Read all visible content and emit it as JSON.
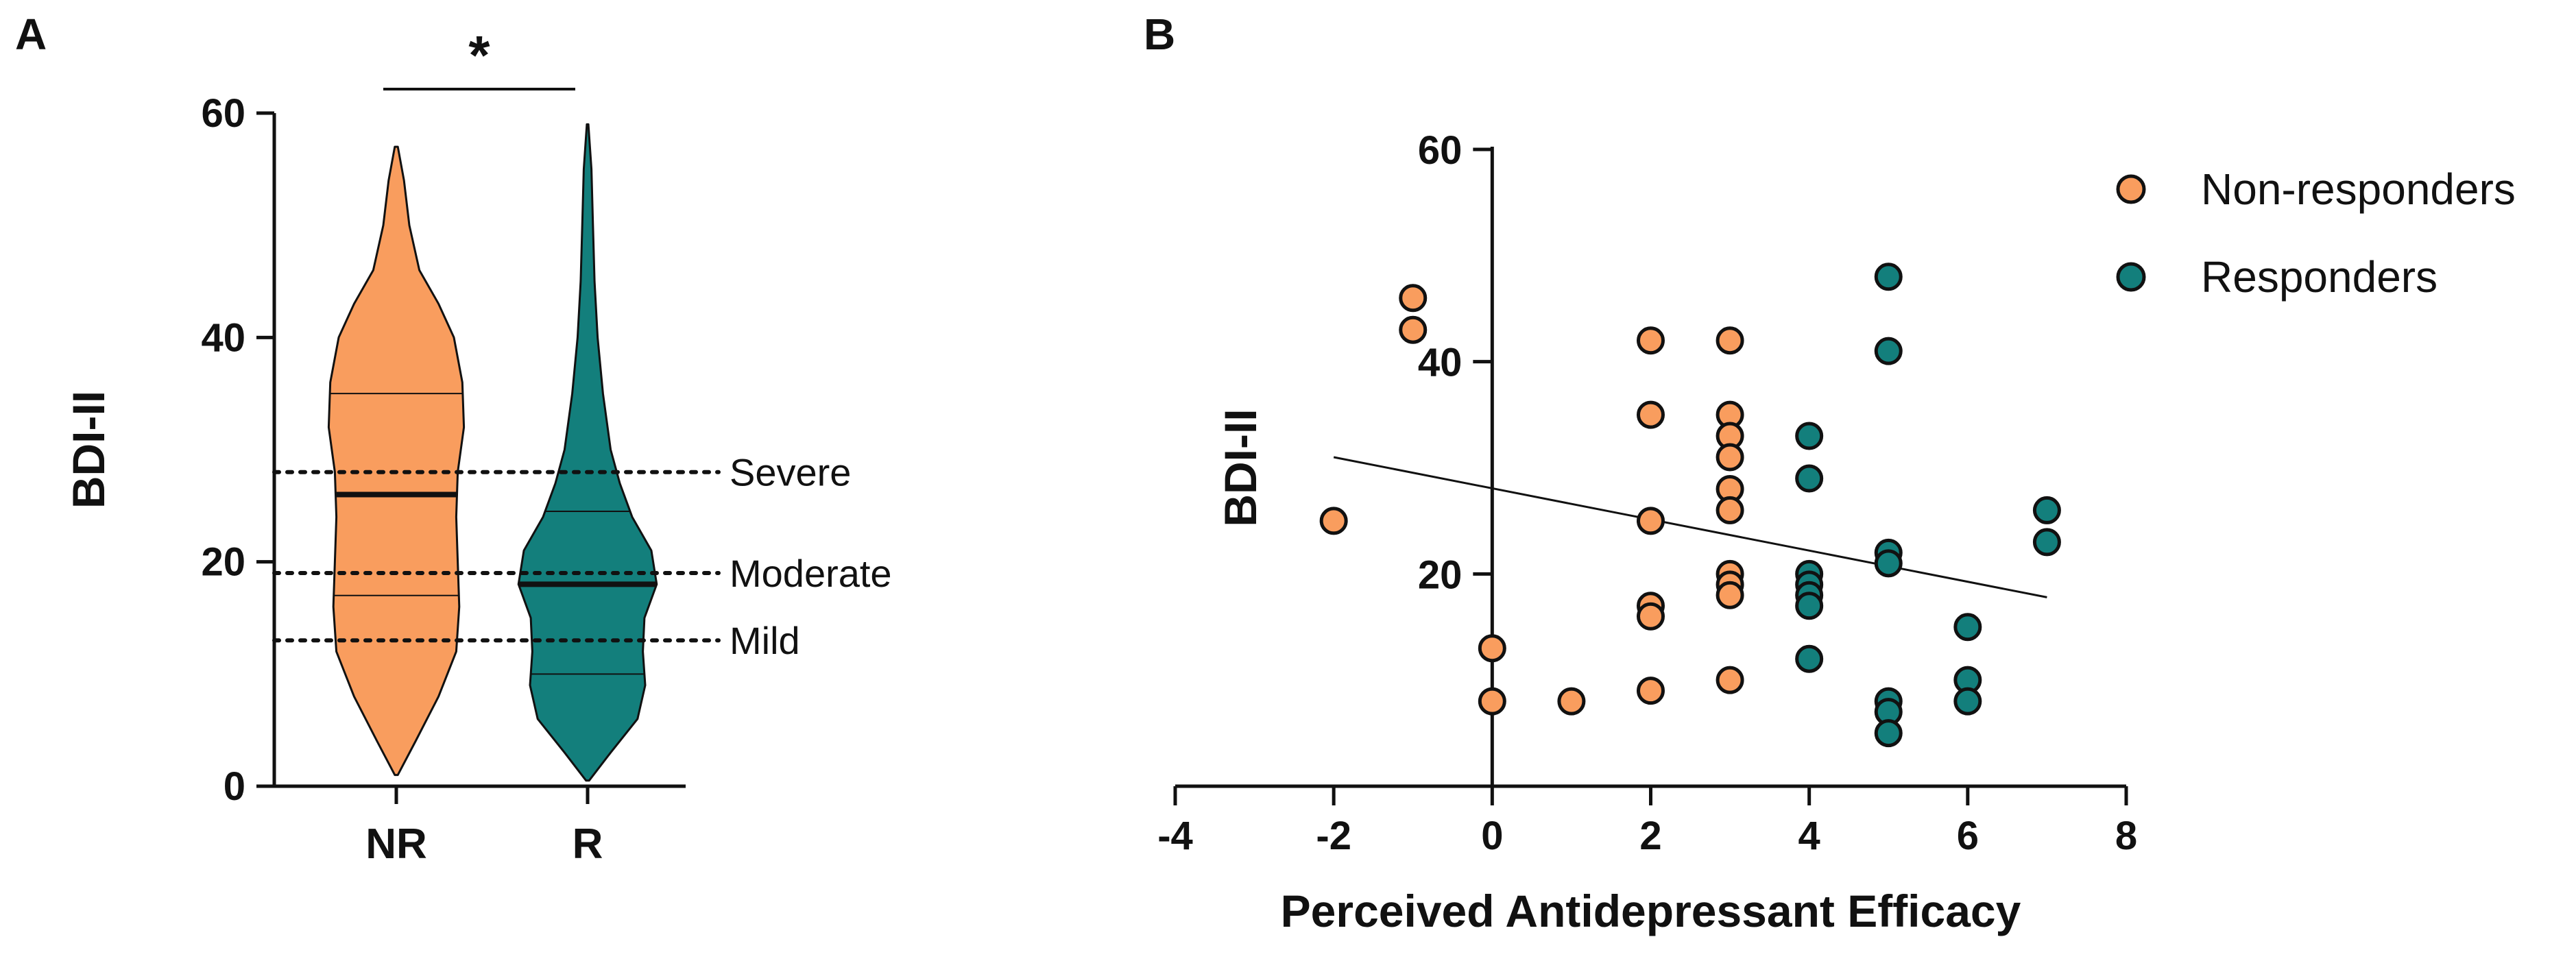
{
  "panels": {
    "a": "A",
    "b": "B"
  },
  "colors": {
    "nr": "#F99D5E",
    "r": "#137F7C",
    "ink": "#111111"
  },
  "chart_data": [
    {
      "type": "violin",
      "panel": "A",
      "ylabel": "BDI-II",
      "ylim": [
        0,
        60
      ],
      "yticks": [
        0,
        20,
        40,
        60
      ],
      "categories": [
        "NR",
        "R"
      ],
      "significance": "*",
      "groups": [
        {
          "name": "NR",
          "median": 26,
          "q1": 17,
          "q3": 35,
          "min": 1,
          "max": 57,
          "density_profile": [
            [
              1,
              0.02
            ],
            [
              4,
              0.25
            ],
            [
              8,
              0.55
            ],
            [
              12,
              0.78
            ],
            [
              16,
              0.82
            ],
            [
              20,
              0.8
            ],
            [
              24,
              0.78
            ],
            [
              28,
              0.8
            ],
            [
              32,
              0.88
            ],
            [
              36,
              0.86
            ],
            [
              40,
              0.75
            ],
            [
              43,
              0.55
            ],
            [
              46,
              0.3
            ],
            [
              50,
              0.17
            ],
            [
              54,
              0.1
            ],
            [
              57,
              0.02
            ]
          ]
        },
        {
          "name": "R",
          "median": 18,
          "q1": 10,
          "q3": 24.5,
          "min": 0.5,
          "max": 59,
          "density_profile": [
            [
              0.5,
              0.02
            ],
            [
              3,
              0.3
            ],
            [
              6,
              0.65
            ],
            [
              9,
              0.75
            ],
            [
              12,
              0.72
            ],
            [
              15,
              0.74
            ],
            [
              18,
              0.9
            ],
            [
              21,
              0.83
            ],
            [
              24,
              0.58
            ],
            [
              27,
              0.42
            ],
            [
              30,
              0.3
            ],
            [
              35,
              0.2
            ],
            [
              40,
              0.13
            ],
            [
              45,
              0.09
            ],
            [
              50,
              0.07
            ],
            [
              55,
              0.05
            ],
            [
              59,
              0.01
            ]
          ]
        }
      ],
      "cutoffs": [
        {
          "label": "Severe",
          "value": 28
        },
        {
          "label": "Moderate",
          "value": 19
        },
        {
          "label": "Mild",
          "value": 13
        }
      ]
    },
    {
      "type": "scatter",
      "panel": "B",
      "xlabel": "Perceived Antidepressant Efficacy",
      "ylabel": "BDI-II",
      "xlim": [
        -4,
        8
      ],
      "ylim": [
        0,
        60
      ],
      "xticks": [
        -4,
        -2,
        0,
        2,
        4,
        6,
        8
      ],
      "yticks": [
        20,
        40,
        60
      ],
      "trendline": {
        "x": [
          -2,
          7
        ],
        "y": [
          31,
          17.8
        ]
      },
      "series": [
        {
          "name": "Non-responders",
          "color": "#F99D5E",
          "points": [
            [
              -2,
              25
            ],
            [
              -1,
              46
            ],
            [
              -1,
              43
            ],
            [
              0,
              13
            ],
            [
              0,
              8
            ],
            [
              1,
              8
            ],
            [
              2,
              42
            ],
            [
              2,
              35
            ],
            [
              2,
              25
            ],
            [
              2,
              17
            ],
            [
              2,
              16
            ],
            [
              2,
              9
            ],
            [
              3,
              42
            ],
            [
              3,
              35
            ],
            [
              3,
              33
            ],
            [
              3,
              31
            ],
            [
              3,
              28
            ],
            [
              3,
              26
            ],
            [
              3,
              20
            ],
            [
              3,
              19
            ],
            [
              3,
              18
            ],
            [
              3,
              10
            ]
          ]
        },
        {
          "name": "Responders",
          "color": "#137F7C",
          "points": [
            [
              4,
              33
            ],
            [
              4,
              29
            ],
            [
              4,
              20
            ],
            [
              4,
              19
            ],
            [
              4,
              18
            ],
            [
              4,
              17
            ],
            [
              4,
              12
            ],
            [
              5,
              48
            ],
            [
              5,
              41
            ],
            [
              5,
              22
            ],
            [
              5,
              21
            ],
            [
              5,
              8
            ],
            [
              5,
              7
            ],
            [
              5,
              5
            ],
            [
              6,
              15
            ],
            [
              6,
              10
            ],
            [
              6,
              8
            ],
            [
              7,
              26
            ],
            [
              7,
              23
            ]
          ]
        }
      ]
    }
  ]
}
